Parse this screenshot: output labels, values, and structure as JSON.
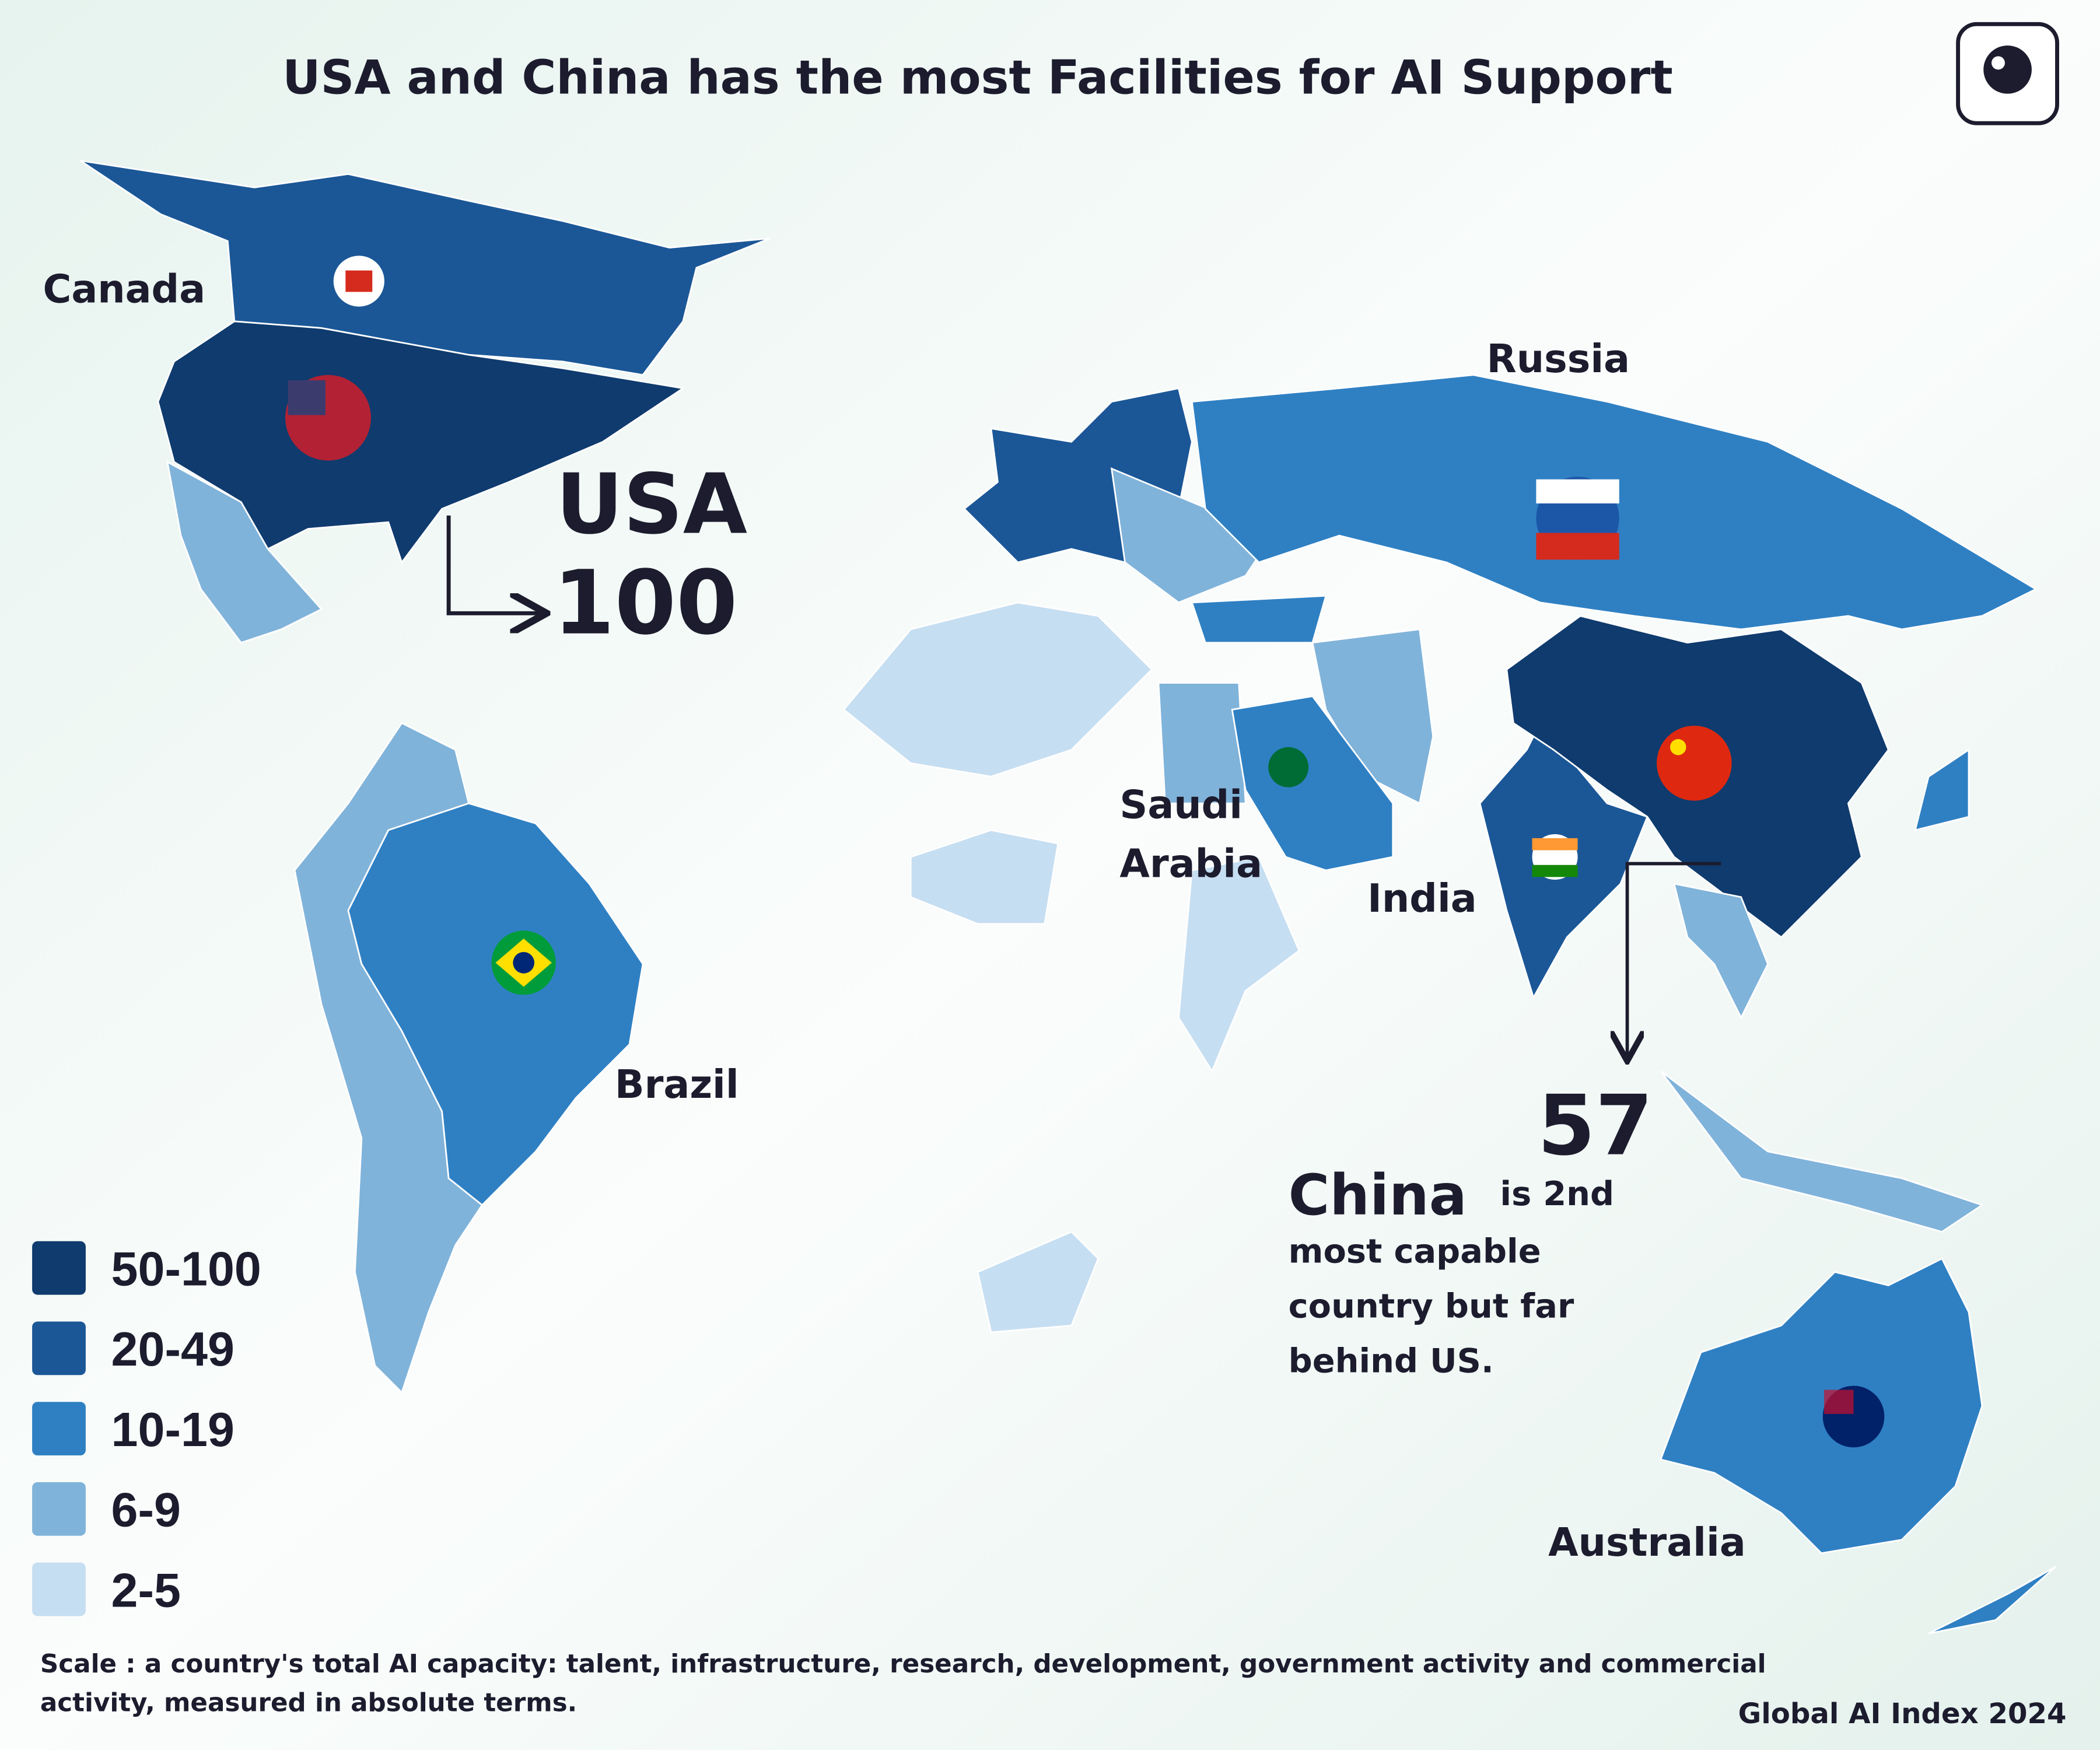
{
  "header": {
    "title": "USA and China has the most Facilities for AI Support"
  },
  "country_labels": {
    "canada": "Canada",
    "russia": "Russia",
    "saudi_arabia": [
      "Saudi",
      "Arabia"
    ],
    "india": "India",
    "brazil": "Brazil",
    "australia": "Australia"
  },
  "usa_callout": {
    "label": "USA",
    "value": 100
  },
  "china_callout": {
    "value": 57,
    "highlight": "China",
    "lines": [
      "is 2nd",
      "most capable",
      "country but far",
      "behind US."
    ]
  },
  "legend": {
    "items": [
      {
        "label": "50-100",
        "color": "#0f3b6e"
      },
      {
        "label": "20-49",
        "color": "#1b5797"
      },
      {
        "label": "10-19",
        "color": "#2f80c3"
      },
      {
        "label": "6-9",
        "color": "#80b3da"
      },
      {
        "label": "2-5",
        "color": "#c6def1"
      }
    ]
  },
  "footnote": {
    "lines": [
      "Scale : a country's total AI capacity: talent, infrastructure, research, development, government activity and commercial",
      "activity, measured in absolute terms."
    ]
  },
  "source": "Global AI Index 2024"
}
